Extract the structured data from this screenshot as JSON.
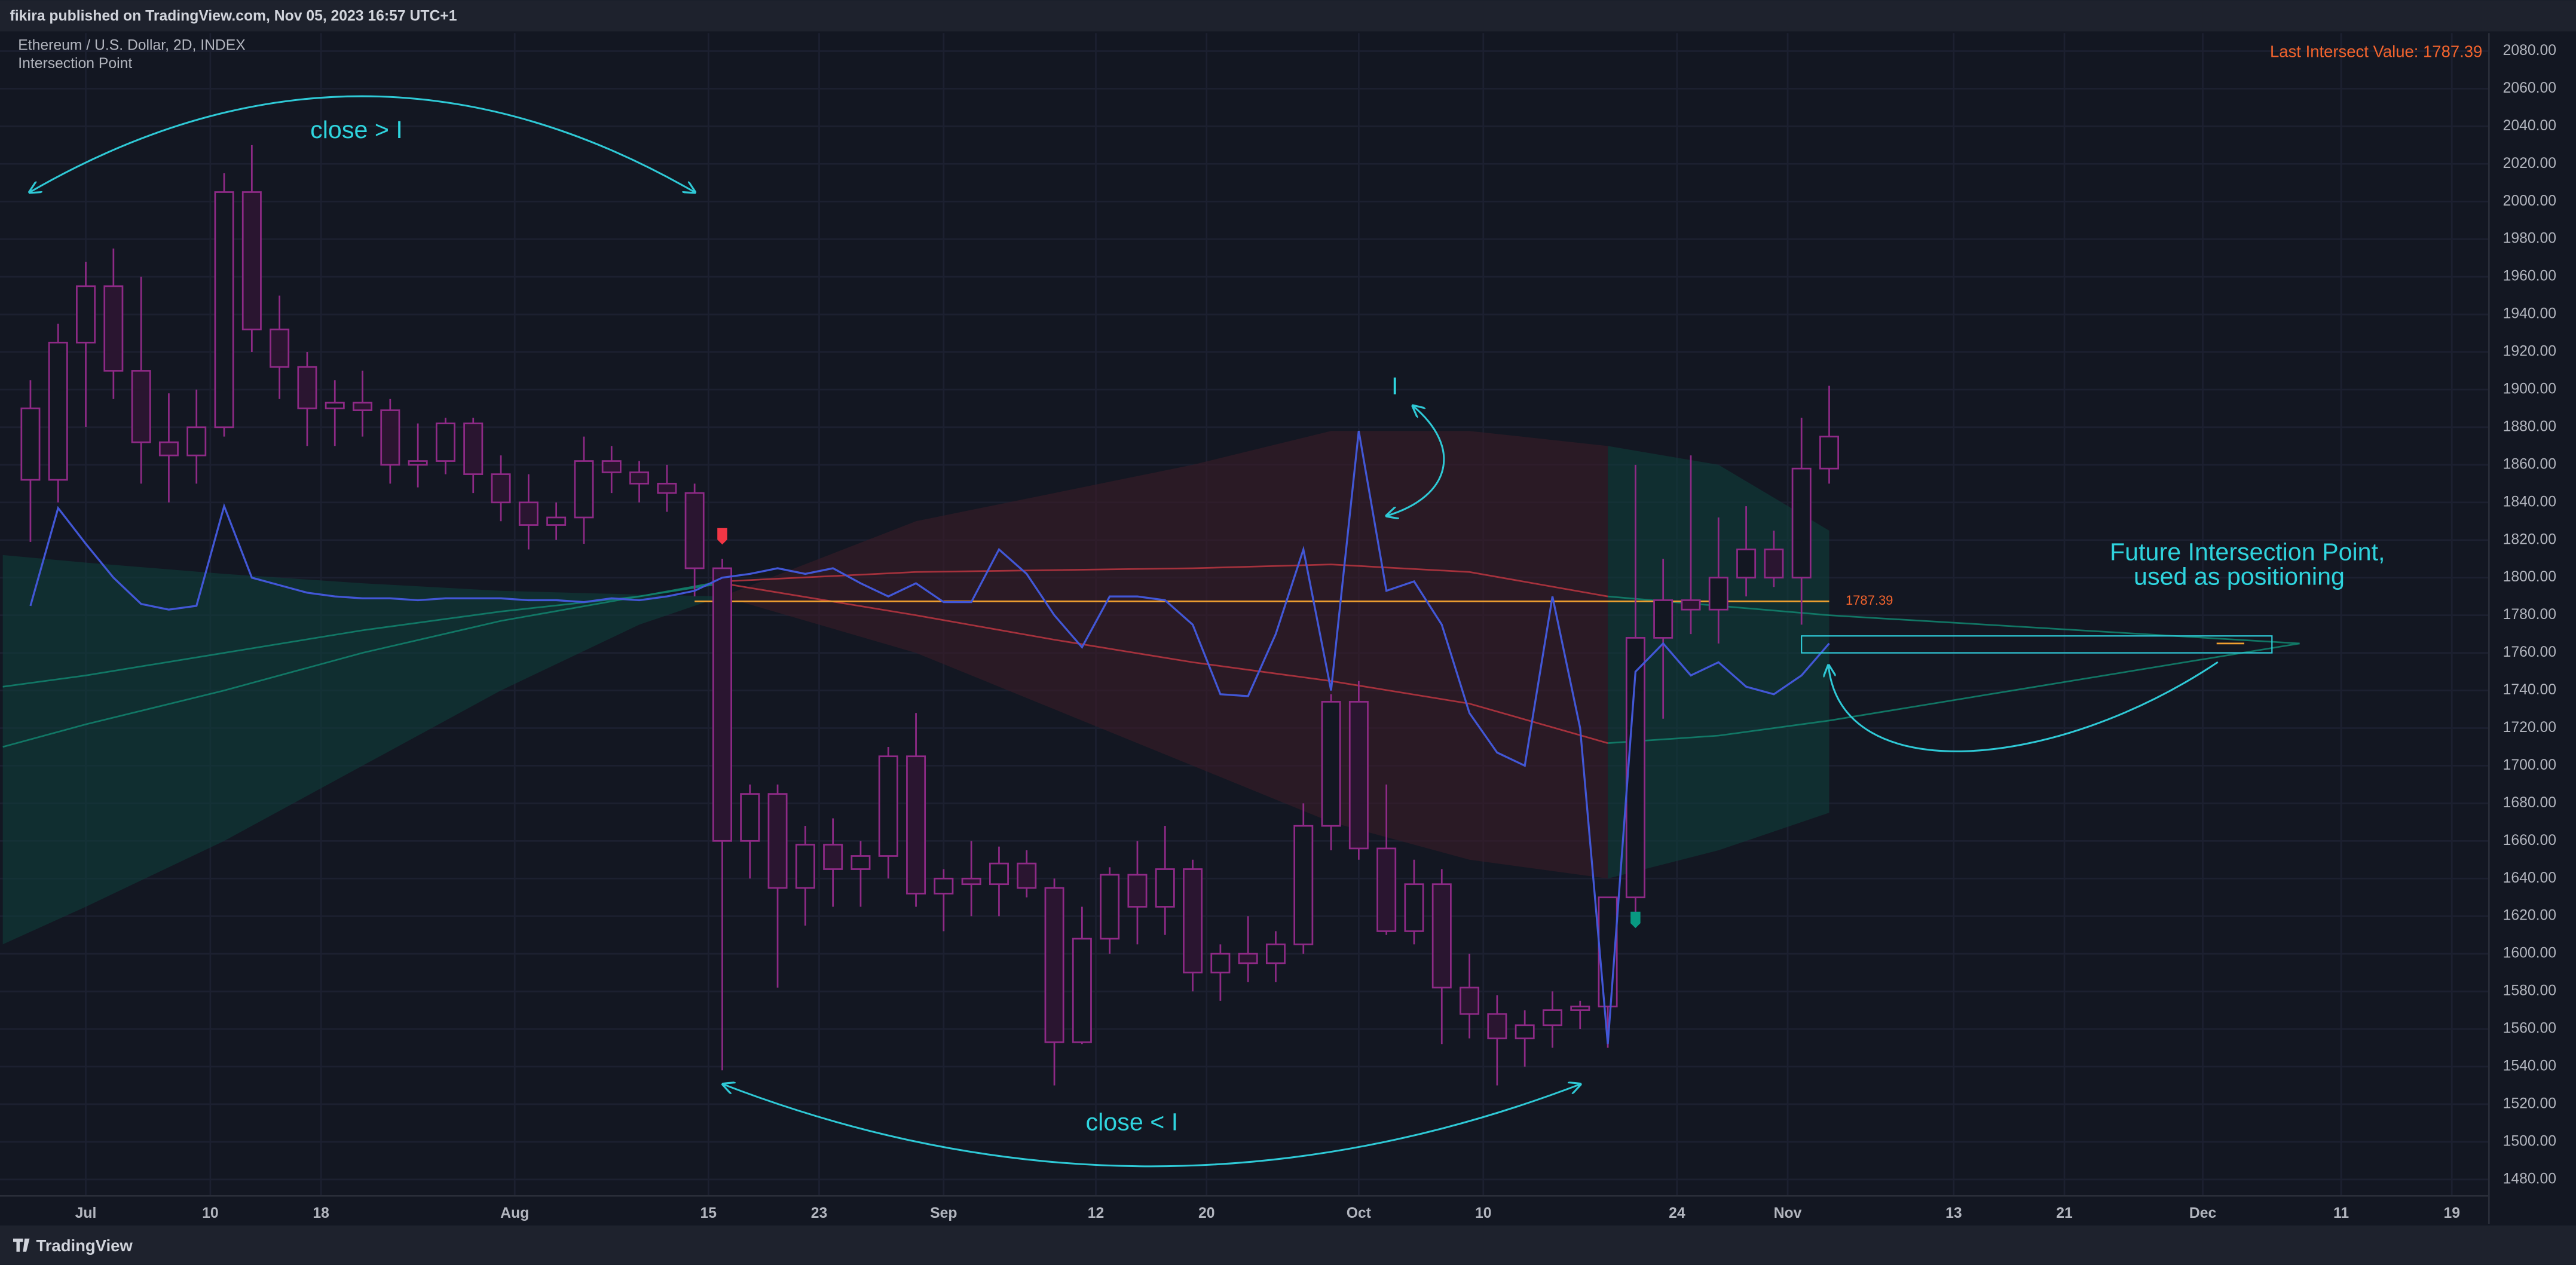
{
  "header": {
    "published": "fikira published on TradingView.com, Nov 05, 2023 16:57 UTC+1",
    "brand": "TradingView"
  },
  "chart_data": {
    "type": "candlestick",
    "title": "Ethereum / U.S. Dollar, 2D, INDEX",
    "subtitle": "Intersection Point",
    "candle_color": "#8e2a86",
    "x": [
      -4,
      -2,
      0,
      2,
      4,
      6,
      8,
      10,
      12,
      14,
      16,
      18,
      20,
      22,
      24,
      26,
      28,
      30,
      32,
      34,
      36,
      38,
      40,
      42,
      44,
      46,
      48,
      50,
      52,
      54,
      56,
      58,
      60,
      62,
      64,
      66,
      68,
      70,
      72,
      74,
      76,
      78,
      80,
      82,
      84,
      86,
      88,
      90,
      92,
      94,
      96,
      98,
      100,
      102,
      104,
      106,
      108,
      110,
      112,
      114,
      116,
      118,
      120,
      122,
      124,
      126
    ],
    "open": [
      1852,
      1852,
      1925,
      1955,
      1910,
      1872,
      1865,
      1880,
      2005,
      1932,
      1912,
      1890,
      1893,
      1889,
      1860,
      1862,
      1882,
      1855,
      1840,
      1828,
      1832,
      1862,
      1856,
      1850,
      1845,
      1805,
      1660,
      1685,
      1635,
      1658,
      1645,
      1652,
      1705,
      1632,
      1640,
      1637,
      1648,
      1635,
      1553,
      1608,
      1642,
      1625,
      1645,
      1590,
      1600,
      1595,
      1605,
      1668,
      1734,
      1656,
      1612,
      1637,
      1582,
      1568,
      1555,
      1562,
      1570,
      1572,
      1630,
      1768,
      1788,
      1783,
      1800,
      1815,
      1800,
      1858
    ],
    "high": [
      1905,
      1935,
      1968,
      1975,
      1960,
      1898,
      1900,
      2015,
      2030,
      1950,
      1920,
      1905,
      1910,
      1895,
      1882,
      1885,
      1885,
      1865,
      1855,
      1840,
      1875,
      1870,
      1862,
      1860,
      1850,
      1810,
      1690,
      1690,
      1668,
      1672,
      1660,
      1710,
      1728,
      1645,
      1660,
      1657,
      1655,
      1640,
      1625,
      1646,
      1660,
      1668,
      1650,
      1605,
      1620,
      1612,
      1680,
      1738,
      1745,
      1690,
      1650,
      1645,
      1600,
      1578,
      1570,
      1580,
      1575,
      1630,
      1860,
      1810,
      1865,
      1832,
      1838,
      1825,
      1885,
      1902
    ],
    "low": [
      1819,
      1840,
      1880,
      1895,
      1850,
      1840,
      1850,
      1875,
      1920,
      1895,
      1870,
      1870,
      1875,
      1850,
      1848,
      1855,
      1845,
      1830,
      1815,
      1820,
      1818,
      1845,
      1840,
      1835,
      1790,
      1538,
      1640,
      1582,
      1615,
      1625,
      1625,
      1640,
      1625,
      1612,
      1620,
      1620,
      1630,
      1530,
      1552,
      1600,
      1605,
      1610,
      1580,
      1575,
      1585,
      1585,
      1600,
      1655,
      1650,
      1610,
      1605,
      1552,
      1555,
      1530,
      1540,
      1550,
      1560,
      1550,
      1618,
      1725,
      1770,
      1765,
      1790,
      1795,
      1775,
      1850
    ],
    "close": [
      1890,
      1925,
      1955,
      1910,
      1872,
      1865,
      1880,
      2005,
      1932,
      1912,
      1890,
      1893,
      1889,
      1860,
      1862,
      1882,
      1855,
      1840,
      1828,
      1832,
      1862,
      1856,
      1850,
      1845,
      1805,
      1660,
      1685,
      1635,
      1658,
      1645,
      1652,
      1705,
      1632,
      1640,
      1637,
      1648,
      1635,
      1553,
      1608,
      1642,
      1625,
      1645,
      1590,
      1600,
      1595,
      1605,
      1668,
      1734,
      1656,
      1612,
      1637,
      1582,
      1568,
      1555,
      1562,
      1570,
      1572,
      1630,
      1768,
      1788,
      1783,
      1800,
      1815,
      1800,
      1858,
      1875
    ],
    "intersection": {
      "color": "#4257d6",
      "values": [
        1785,
        1837,
        1818,
        1800,
        1786,
        1783,
        1785,
        1838,
        1800,
        1796,
        1792,
        1790,
        1789,
        1789,
        1788,
        1789,
        1789,
        1789,
        1788,
        1788,
        1787,
        1789,
        1788,
        1790,
        1793,
        1800,
        1802,
        1805,
        1802,
        1805,
        1797,
        1790,
        1797,
        1787,
        1787,
        1815,
        1802,
        1780,
        1763,
        1790,
        1790,
        1788,
        1775,
        1738,
        1737,
        1770,
        1815,
        1740,
        1878,
        1793,
        1798,
        1775,
        1728,
        1707,
        1700,
        1790,
        1720,
        1552,
        1750,
        1765,
        1748,
        1755,
        1742,
        1738,
        1748,
        1765
      ]
    },
    "lines": [
      {
        "color": "#12806b",
        "x": [
          -6,
          0,
          10,
          20,
          30,
          40,
          46
        ],
        "values": [
          1710,
          1722,
          1740,
          1760,
          1777,
          1790,
          1797
        ]
      },
      {
        "color": "#b3343f",
        "x": [
          46,
          60,
          70,
          80,
          90,
          100,
          110
        ],
        "values": [
          1797,
          1780,
          1767,
          1755,
          1745,
          1733,
          1712
        ]
      },
      {
        "color": "#12806b",
        "x": [
          110,
          118,
          126,
          160
        ],
        "values": [
          1712,
          1716,
          1724,
          1765
        ]
      },
      {
        "color": "#12806b",
        "x": [
          -6,
          0,
          10,
          20,
          30,
          40,
          46
        ],
        "values": [
          1742,
          1748,
          1760,
          1772,
          1782,
          1790,
          1798
        ]
      },
      {
        "color": "#b3343f",
        "x": [
          46,
          60,
          70,
          80,
          90,
          100,
          110
        ],
        "values": [
          1798,
          1803,
          1804,
          1805,
          1807,
          1803,
          1790
        ]
      },
      {
        "color": "#12806b",
        "x": [
          110,
          118,
          126,
          160
        ],
        "values": [
          1790,
          1785,
          1780,
          1765
        ]
      }
    ],
    "bands": [
      {
        "color": "#0f3d3a",
        "x": [
          -6,
          0,
          10,
          20,
          30,
          40,
          46
        ],
        "upper": [
          1812,
          1808,
          1802,
          1797,
          1793,
          1791,
          1790
        ],
        "lower": [
          1605,
          1625,
          1660,
          1700,
          1740,
          1775,
          1790
        ]
      },
      {
        "color": "#3a1c28",
        "x": [
          46,
          60,
          70,
          80,
          90,
          100,
          110
        ],
        "upper": [
          1790,
          1830,
          1845,
          1860,
          1878,
          1878,
          1870
        ],
        "lower": [
          1790,
          1760,
          1730,
          1700,
          1670,
          1650,
          1640
        ]
      },
      {
        "color": "#0f3d3a",
        "x": [
          110,
          118,
          126
        ],
        "upper": [
          1870,
          1860,
          1825
        ],
        "lower": [
          1640,
          1655,
          1675
        ]
      }
    ],
    "level": {
      "value": 1787.39,
      "color": "#f0a030",
      "x": [
        44,
        126
      ]
    },
    "last_value_text": "Last Intersect Value: 1787.39",
    "markers": [
      {
        "x": 46,
        "value": 1822,
        "color": "#f23645"
      },
      {
        "x": 112,
        "value": 1618,
        "color": "#089981"
      }
    ],
    "future_box": {
      "color": "#2fc9d6",
      "x": [
        124,
        158
      ],
      "y": [
        1760,
        1769
      ]
    },
    "future_value": {
      "value": 1765,
      "x": [
        154,
        156
      ]
    },
    "annotations": [
      "close > I",
      "I",
      "close < I",
      "Future Intersection Point,",
      "used as positioning"
    ],
    "xlim": [
      -6.2,
      171.9
    ],
    "xticks": [
      {
        "value": 0,
        "label": "Jul"
      },
      {
        "value": 9,
        "label": "10"
      },
      {
        "value": 17,
        "label": "18"
      },
      {
        "value": 31,
        "label": "Aug"
      },
      {
        "value": 45,
        "label": "15"
      },
      {
        "value": 53,
        "label": "23"
      },
      {
        "value": 62,
        "label": "Sep"
      },
      {
        "value": 73,
        "label": "12"
      },
      {
        "value": 81,
        "label": "20"
      },
      {
        "value": 92,
        "label": "Oct"
      },
      {
        "value": 101,
        "label": "10"
      },
      {
        "value": 115,
        "label": "24"
      },
      {
        "value": 123,
        "label": "Nov"
      },
      {
        "value": 135,
        "label": "13"
      },
      {
        "value": 143,
        "label": "21"
      },
      {
        "value": 153,
        "label": "Dec"
      },
      {
        "value": 163,
        "label": "11"
      },
      {
        "value": 171,
        "label": "19"
      }
    ],
    "ylim": [
      1480,
      2080
    ],
    "yticks": [
      {
        "value": 1480,
        "label": "1480.00"
      },
      {
        "value": 1500,
        "label": "1500.00"
      },
      {
        "value": 1520,
        "label": "1520.00"
      },
      {
        "value": 1540,
        "label": "1540.00"
      },
      {
        "value": 1560,
        "label": "1560.00"
      },
      {
        "value": 1580,
        "label": "1580.00"
      },
      {
        "value": 1600,
        "label": "1600.00"
      },
      {
        "value": 1620,
        "label": "1620.00"
      },
      {
        "value": 1640,
        "label": "1640.00"
      },
      {
        "value": 1660,
        "label": "1660.00"
      },
      {
        "value": 1680,
        "label": "1680.00"
      },
      {
        "value": 1700,
        "label": "1700.00"
      },
      {
        "value": 1720,
        "label": "1720.00"
      },
      {
        "value": 1740,
        "label": "1740.00"
      },
      {
        "value": 1760,
        "label": "1760.00"
      },
      {
        "value": 1780,
        "label": "1780.00"
      },
      {
        "value": 1800,
        "label": "1800.00"
      },
      {
        "value": 1820,
        "label": "1820.00"
      },
      {
        "value": 1840,
        "label": "1840.00"
      },
      {
        "value": 1860,
        "label": "1860.00"
      },
      {
        "value": 1880,
        "label": "1880.00"
      },
      {
        "value": 1900,
        "label": "1900.00"
      },
      {
        "value": 1920,
        "label": "1920.00"
      },
      {
        "value": 1940,
        "label": "1940.00"
      },
      {
        "value": 1960,
        "label": "1960.00"
      },
      {
        "value": 1980,
        "label": "1980.00"
      },
      {
        "value": 2000,
        "label": "2000.00"
      },
      {
        "value": 2020,
        "label": "2020.00"
      },
      {
        "value": 2040,
        "label": "2040.00"
      },
      {
        "value": 2060,
        "label": "2060.00"
      },
      {
        "value": 2080,
        "label": "2080.00"
      }
    ],
    "grid": true
  }
}
